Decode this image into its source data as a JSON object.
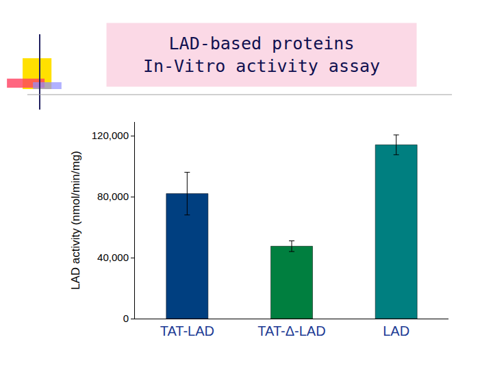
{
  "chart_data": {
    "type": "bar",
    "title": "LAD-based proteins\nIn-Vitro activity assay",
    "y_label": "LAD activity (nmol/min/mg)",
    "categories": [
      "TAT-LAD",
      "TAT-Δ-LAD",
      "LAD"
    ],
    "values": [
      82000,
      47500,
      114000
    ],
    "errors": [
      14000,
      3500,
      6500
    ],
    "colors": [
      "#003f80",
      "#007f3f",
      "#007f80"
    ],
    "ylim": [
      0,
      129000
    ],
    "yticks": [
      0,
      {
        "value": 40000,
        "label": "40,000"
      },
      {
        "value": 80000,
        "label": "80,000"
      },
      {
        "value": 120000,
        "label": "120,000"
      }
    ],
    "grid": false
  }
}
